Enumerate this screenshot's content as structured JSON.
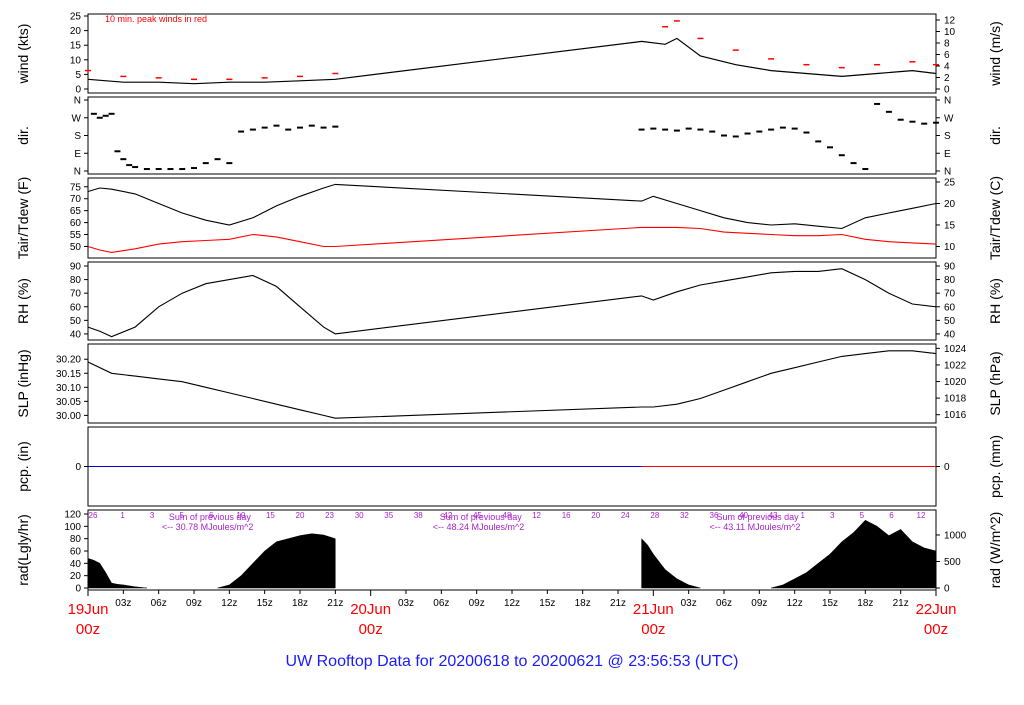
{
  "title": "UW Rooftop Data for 20200618  to  20200621 @ 23:56:53  (UTC)",
  "colors": {
    "title": "#1a1aff",
    "axis": "#000000",
    "peak": "#ff0000",
    "dew": "#ff0000",
    "precip_blue": "#0000cc",
    "precip_red": "#ff0000",
    "rad_label": "#aa22cc",
    "date_label": "#ff0000"
  },
  "x_axis": {
    "ticks": [
      "03z",
      "06z",
      "09z",
      "12z",
      "15z",
      "18z",
      "21z",
      "03z",
      "06z",
      "09z",
      "12z",
      "15z",
      "18z",
      "21z",
      "03z",
      "06z",
      "09z",
      "12z",
      "15z",
      "18z",
      "21z"
    ],
    "date_labels": [
      {
        "day": "19Jun",
        "hour": "00z"
      },
      {
        "day": "20Jun",
        "hour": "00z"
      },
      {
        "day": "21Jun",
        "hour": "00z"
      },
      {
        "day": "22Jun",
        "hour": "00z"
      }
    ]
  },
  "chart_data": [
    {
      "type": "line",
      "name": "wind",
      "ylabel": "wind (kts)",
      "ylabel_right": "wind (m/s)",
      "annotation": "10 min. peak winds in red",
      "x_range_hours": [
        0,
        72
      ],
      "ylim": [
        0,
        25
      ],
      "y_ticks": [
        "25",
        "20",
        "15",
        "10",
        "5",
        "0"
      ],
      "y_ticks_right": [
        "12",
        "10",
        "8",
        "6",
        "4",
        "2",
        "0"
      ],
      "gap_hours": [
        21,
        47
      ],
      "x": [
        0,
        3,
        6,
        9,
        12,
        15,
        18,
        21,
        47,
        49,
        50,
        52,
        55,
        58,
        61,
        64,
        67,
        70,
        72
      ],
      "series": [
        {
          "name": "wind",
          "values": [
            4,
            3,
            3,
            2.5,
            3,
            3,
            3.5,
            4,
            17,
            16,
            18,
            12,
            9,
            7,
            6,
            5,
            6,
            7,
            6
          ]
        },
        {
          "name": "peak",
          "values": [
            7,
            5,
            4.5,
            4,
            4,
            4.5,
            5,
            6,
            null,
            22,
            24,
            18,
            14,
            11,
            9,
            8,
            9,
            10,
            9
          ]
        }
      ]
    },
    {
      "type": "scatter",
      "name": "direction",
      "ylabel": "dir.",
      "ylabel_right": "dir.",
      "y_ticks": [
        "N",
        "W",
        "S",
        "E",
        "N"
      ],
      "y_ticks_right": [
        "N",
        "W",
        "S",
        "E",
        "N"
      ],
      "ylim": [
        0,
        360
      ],
      "x": [
        0.5,
        1,
        1.5,
        2,
        2.5,
        3,
        3.5,
        4,
        5,
        6,
        7,
        8,
        9,
        10,
        11,
        12,
        13,
        14,
        15,
        16,
        17,
        18,
        19,
        20,
        21,
        47,
        48,
        49,
        50,
        51,
        52,
        53,
        54,
        55,
        56,
        57,
        58,
        59,
        60,
        61,
        62,
        63,
        64,
        65,
        66,
        67,
        68,
        69,
        70,
        71,
        72
      ],
      "values": [
        290,
        270,
        280,
        290,
        100,
        60,
        30,
        20,
        10,
        10,
        10,
        10,
        15,
        40,
        60,
        40,
        200,
        210,
        220,
        230,
        210,
        220,
        230,
        220,
        225,
        210,
        215,
        210,
        205,
        215,
        210,
        200,
        180,
        175,
        190,
        200,
        210,
        220,
        215,
        195,
        150,
        120,
        80,
        40,
        10,
        340,
        300,
        260,
        250,
        240,
        245
      ]
    },
    {
      "type": "line",
      "name": "temperature",
      "ylabel": "Tair/Tdew (F)",
      "ylabel_right": "Tair/Tdew (C)",
      "ylim": [
        46,
        77
      ],
      "y_ticks": [
        "75",
        "70",
        "65",
        "60",
        "55",
        "50"
      ],
      "y_ticks_right": [
        "25",
        "20",
        "15",
        "10"
      ],
      "x": [
        0,
        1,
        2,
        4,
        6,
        8,
        10,
        12,
        14,
        16,
        18,
        20,
        21,
        47,
        48,
        50,
        52,
        54,
        56,
        58,
        60,
        62,
        64,
        66,
        68,
        70,
        72
      ],
      "series": [
        {
          "name": "Tair",
          "values": [
            73,
            74.5,
            74,
            72,
            68,
            64,
            61,
            59,
            62,
            67,
            71,
            74.5,
            76,
            69,
            71,
            68,
            65,
            62,
            60,
            59,
            59.5,
            58.5,
            57.5,
            62,
            64,
            66,
            68
          ]
        },
        {
          "name": "Tdew",
          "values": [
            50,
            48.5,
            47.5,
            49,
            51,
            52,
            52.5,
            53,
            55,
            54,
            52,
            50,
            50,
            58,
            58,
            58,
            57.5,
            56,
            55.5,
            55,
            54.5,
            54.5,
            55,
            53,
            52,
            51.5,
            51
          ]
        }
      ]
    },
    {
      "type": "line",
      "name": "relative_humidity",
      "ylabel": "RH (%)",
      "ylabel_right": "RH (%)",
      "ylim": [
        37,
        90
      ],
      "y_ticks": [
        "90",
        "80",
        "70",
        "60",
        "50",
        "40"
      ],
      "y_ticks_right": [
        "90",
        "80",
        "70",
        "60",
        "50",
        "40"
      ],
      "x": [
        0,
        1,
        2,
        4,
        6,
        8,
        10,
        12,
        14,
        16,
        18,
        20,
        21,
        47,
        48,
        50,
        52,
        54,
        56,
        58,
        60,
        62,
        64,
        66,
        68,
        70,
        72
      ],
      "values": [
        45,
        42,
        38,
        45,
        60,
        70,
        77,
        80,
        83,
        75,
        60,
        45,
        40,
        68,
        65,
        71,
        76,
        79,
        82,
        85,
        86,
        86,
        88,
        80,
        70,
        62,
        60
      ]
    },
    {
      "type": "line",
      "name": "sea_level_pressure",
      "ylabel": "SLP (inHg)",
      "ylabel_right": "SLP (hPa)",
      "ylim": [
        29.98,
        30.24
      ],
      "y_ticks": [
        "30.20",
        "30.15",
        "30.10",
        "30.05",
        "30.00"
      ],
      "y_ticks_right": [
        "1024",
        "1022",
        "1020",
        "1018",
        "1016"
      ],
      "x": [
        0,
        2,
        4,
        6,
        8,
        10,
        12,
        14,
        16,
        18,
        20,
        21,
        47,
        48,
        50,
        52,
        54,
        56,
        58,
        60,
        62,
        64,
        66,
        68,
        70,
        72
      ],
      "values": [
        30.19,
        30.15,
        30.14,
        30.13,
        30.12,
        30.1,
        30.08,
        30.06,
        30.04,
        30.02,
        30.0,
        29.99,
        30.03,
        30.03,
        30.04,
        30.06,
        30.09,
        30.12,
        30.15,
        30.17,
        30.19,
        30.21,
        30.22,
        30.23,
        30.23,
        30.22
      ]
    },
    {
      "type": "line",
      "name": "precipitation",
      "ylabel": "pcp. (in)",
      "ylabel_right": "pcp. (mm)",
      "y_ticks": [
        "0"
      ],
      "y_ticks_right": [
        "0"
      ],
      "segments": [
        {
          "x_range_hours": [
            0,
            47
          ],
          "value": 0,
          "color": "blue"
        },
        {
          "x_range_hours": [
            47,
            72
          ],
          "value": 0,
          "color": "red"
        }
      ]
    },
    {
      "type": "area",
      "name": "radiation",
      "ylabel": "rad(Lgly/hr)",
      "ylabel_right": "rad (W/m^2)",
      "ylim": [
        0,
        120
      ],
      "y_ticks": [
        "120",
        "100",
        "80",
        "60",
        "40",
        "20",
        "0"
      ],
      "y_ticks_right": [
        "1000",
        "500",
        "0"
      ],
      "annotations": [
        {
          "text": "Sum of previous day",
          "x_hours": 5
        },
        {
          "text": "<-- 30.78 MJoules/m^2",
          "x_hours": 5
        },
        {
          "text": "Sum of previous day",
          "x_hours": 28
        },
        {
          "text": "<-- 48.24 MJoules/m^2",
          "x_hours": 28
        },
        {
          "text": "Sum of previous day",
          "x_hours": 51.5
        },
        {
          "text": "<-- 43.11 MJoules/m^2",
          "x_hours": 51.5
        }
      ],
      "tick_labels_upper": [
        "26",
        "1",
        "3",
        "5",
        "6",
        "10",
        "15",
        "20",
        "23",
        "30",
        "35",
        "38",
        "42",
        "45",
        "48",
        "12",
        "16",
        "20",
        "24",
        "28",
        "32",
        "36",
        "40",
        "43",
        "1",
        "3",
        "5",
        "6",
        "12"
      ],
      "x": [
        0,
        0.5,
        1,
        1.5,
        2,
        2.5,
        3,
        4,
        5,
        11,
        12,
        13,
        14,
        15,
        16,
        17,
        18,
        19,
        20,
        21,
        47,
        47.5,
        48,
        49,
        50,
        51,
        52,
        58,
        59,
        60,
        61,
        62,
        63,
        64,
        65,
        66,
        67,
        68,
        69,
        70,
        71,
        72
      ],
      "values": [
        48,
        45,
        40,
        25,
        8,
        6,
        5,
        2,
        0,
        0,
        5,
        20,
        40,
        60,
        75,
        80,
        85,
        88,
        86,
        80,
        80,
        70,
        55,
        30,
        15,
        5,
        0,
        0,
        5,
        15,
        25,
        40,
        55,
        75,
        90,
        110,
        100,
        85,
        95,
        75,
        65,
        60
      ]
    }
  ]
}
